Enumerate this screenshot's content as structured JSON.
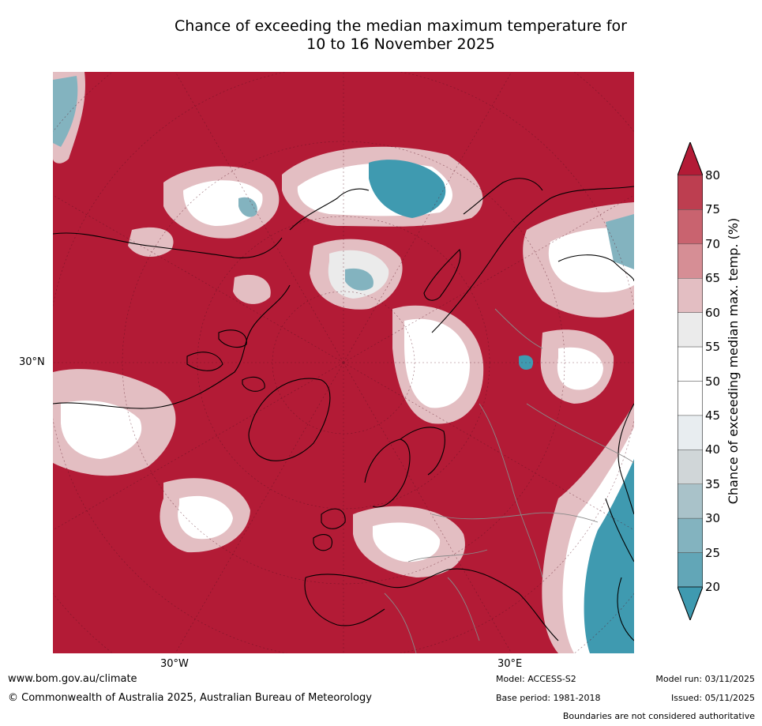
{
  "title_line1": "Chance of exceeding the median maximum temperature for",
  "title_line2": "10 to 16 November 2025",
  "axes": {
    "lat_label": "30°N",
    "lon_west_label": "30°W",
    "lon_east_label": "30°E"
  },
  "colorbar": {
    "label": "Chance of exceeding median max. temp. (%)",
    "ticks": [
      "80",
      "75",
      "70",
      "65",
      "60",
      "55",
      "50",
      "45",
      "40",
      "35",
      "30",
      "25",
      "20"
    ],
    "colors": [
      "#b31b36",
      "#bd3e50",
      "#c9636f",
      "#d68e95",
      "#e3bec2",
      "#ebebeb",
      "#ffffff",
      "#ffffff",
      "#e8edf0",
      "#d0d6d8",
      "#a9c2c9",
      "#83b3bf",
      "#62a6b7",
      "#3f9ab0"
    ]
  },
  "footer": {
    "website": "www.bom.gov.au/climate",
    "copyright": "© Commonwealth of Australia 2025, Australian Bureau of Meteorology",
    "model": "Model: ACCESS-S2",
    "base_period": "Base period: 1981-2018",
    "model_run": "Model run: 03/11/2025",
    "issued": "Issued: 05/11/2025",
    "disclaimer": "Boundaries are not considered authoritative"
  }
}
